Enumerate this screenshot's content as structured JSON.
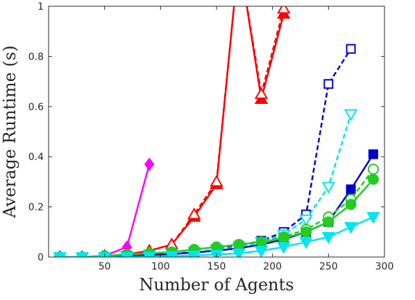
{
  "chart_data": {
    "type": "line",
    "title": "",
    "xlabel": "Number of Agents",
    "ylabel": "Average Runtime (s)",
    "xlim": [
      0,
      300
    ],
    "ylim": [
      0,
      1
    ],
    "xticks": [
      50,
      100,
      150,
      200,
      250,
      300
    ],
    "yticks": [
      0,
      0.2,
      0.4,
      0.6,
      0.8,
      1
    ],
    "ytick_labels": [
      "0",
      "0.2",
      "0.4",
      "0.6",
      "0.8",
      "1"
    ],
    "grid": false,
    "legend": "none",
    "series": [
      {
        "color": "#ff00ff",
        "line": "solid",
        "marker": "diamond",
        "filled": true,
        "x": [
          10,
          30,
          50,
          70,
          90
        ],
        "y": [
          0.0,
          0.0,
          0.005,
          0.04,
          0.37
        ]
      },
      {
        "color": "#ff0000",
        "line": "solid",
        "marker": "triangle-up",
        "filled": true,
        "x": [
          10,
          30,
          50,
          70,
          90,
          110,
          130,
          150,
          170,
          190,
          210
        ],
        "y": [
          0.0,
          0.0,
          0.005,
          0.01,
          0.025,
          0.05,
          0.16,
          0.29,
          1.2,
          0.63,
          0.97
        ]
      },
      {
        "color": "#ff0000",
        "line": "dashed",
        "marker": "triangle-up",
        "filled": false,
        "x": [
          10,
          30,
          50,
          70,
          90,
          110,
          130,
          150,
          170,
          190,
          210
        ],
        "y": [
          0.0,
          0.0,
          0.005,
          0.01,
          0.025,
          0.05,
          0.17,
          0.3,
          1.2,
          0.65,
          0.99
        ]
      },
      {
        "color": "#0000cc",
        "line": "dashed",
        "marker": "square",
        "filled": false,
        "x": [
          10,
          30,
          50,
          70,
          90,
          110,
          130,
          150,
          170,
          190,
          210,
          230,
          250,
          270
        ],
        "y": [
          0.0,
          0.0,
          0.0,
          0.005,
          0.01,
          0.015,
          0.02,
          0.03,
          0.045,
          0.065,
          0.1,
          0.17,
          0.69,
          0.83
        ]
      },
      {
        "color": "#00e5ee",
        "line": "dashed",
        "marker": "triangle-down",
        "filled": false,
        "x": [
          10,
          30,
          50,
          70,
          90,
          110,
          130,
          150,
          170,
          190,
          210,
          230,
          250,
          270
        ],
        "y": [
          0.0,
          0.0,
          0.0,
          0.005,
          0.01,
          0.015,
          0.02,
          0.03,
          0.04,
          0.06,
          0.09,
          0.15,
          0.28,
          0.57
        ]
      },
      {
        "color": "#0000cc",
        "line": "solid",
        "marker": "square",
        "filled": true,
        "x": [
          10,
          30,
          50,
          70,
          90,
          110,
          130,
          150,
          170,
          190,
          210,
          230,
          250,
          270,
          290
        ],
        "y": [
          0.0,
          0.0,
          0.0,
          0.005,
          0.008,
          0.012,
          0.018,
          0.025,
          0.035,
          0.05,
          0.07,
          0.1,
          0.14,
          0.27,
          0.41
        ]
      },
      {
        "color": "#22cc22",
        "line": "dashed",
        "marker": "circle",
        "filled": false,
        "x": [
          10,
          30,
          50,
          70,
          90,
          110,
          130,
          150,
          170,
          190,
          210,
          230,
          250,
          270,
          290
        ],
        "y": [
          0.0,
          0.0,
          0.005,
          0.01,
          0.015,
          0.02,
          0.03,
          0.04,
          0.05,
          0.06,
          0.08,
          0.11,
          0.16,
          0.23,
          0.35
        ]
      },
      {
        "color": "#22cc22",
        "line": "solid",
        "marker": "circle",
        "filled": true,
        "x": [
          10,
          30,
          50,
          70,
          90,
          110,
          130,
          150,
          170,
          190,
          210,
          230,
          250,
          270,
          290
        ],
        "y": [
          0.0,
          0.0,
          0.005,
          0.01,
          0.015,
          0.02,
          0.03,
          0.04,
          0.05,
          0.06,
          0.075,
          0.1,
          0.14,
          0.21,
          0.31
        ]
      },
      {
        "color": "#00e5ee",
        "line": "solid",
        "marker": "triangle-down",
        "filled": true,
        "x": [
          10,
          30,
          50,
          70,
          90,
          110,
          130,
          150,
          170,
          190,
          210,
          230,
          250,
          270,
          290
        ],
        "y": [
          0.0,
          0.0,
          0.0,
          0.0,
          0.002,
          0.004,
          0.006,
          0.01,
          0.015,
          0.025,
          0.04,
          0.06,
          0.08,
          0.12,
          0.16
        ]
      }
    ]
  }
}
